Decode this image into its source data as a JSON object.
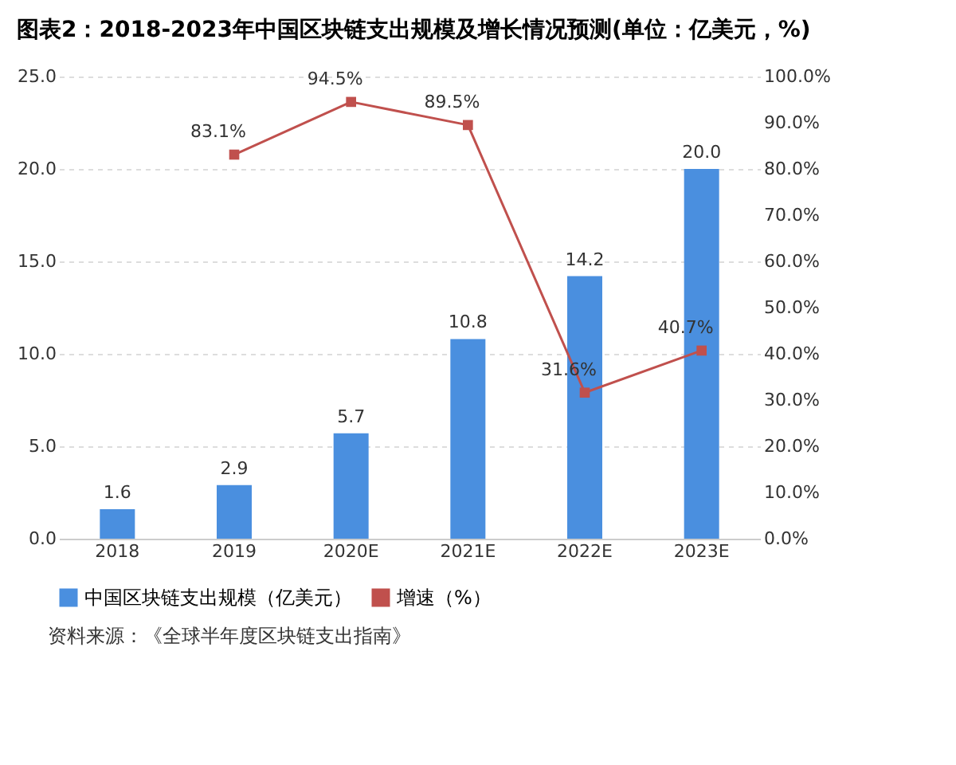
{
  "chart_data": {
    "type": "bar",
    "title": "图表2：2018-2023年中国区块链支出规模及增长情况预测(单位：亿美元，%)",
    "categories": [
      "2018",
      "2019",
      "2020E",
      "2021E",
      "2022E",
      "2023E"
    ],
    "series": [
      {
        "name": "中国区块链支出规模（亿美元）",
        "color": "#4a8fdf",
        "values": [
          1.6,
          2.9,
          5.7,
          10.8,
          14.2,
          20.0
        ],
        "value_labels": [
          "1.6",
          "2.9",
          "5.7",
          "10.8",
          "14.2",
          "20.0"
        ]
      },
      {
        "name": "增速（%）",
        "type": "line",
        "axis": "y2",
        "color": "#c0504d",
        "marker": "square",
        "values": [
          null,
          83.1,
          94.5,
          89.5,
          31.6,
          40.7
        ],
        "value_labels": [
          null,
          "83.1%",
          "94.5%",
          "89.5%",
          "31.6%",
          "40.7%"
        ]
      }
    ],
    "ylim": [
      0,
      25
    ],
    "yticks": [
      {
        "value": 0,
        "label": "0.0"
      },
      {
        "value": 5,
        "label": "5.0"
      },
      {
        "value": 10,
        "label": "10.0"
      },
      {
        "value": 15,
        "label": "15.0"
      },
      {
        "value": 20,
        "label": "20.0"
      },
      {
        "value": 25,
        "label": "25.0"
      }
    ],
    "y2lim": [
      0,
      100
    ],
    "y2ticks": [
      {
        "value": 0,
        "label": "0.0%"
      },
      {
        "value": 10,
        "label": "10.0%"
      },
      {
        "value": 20,
        "label": "20.0%"
      },
      {
        "value": 30,
        "label": "30.0%"
      },
      {
        "value": 40,
        "label": "40.0%"
      },
      {
        "value": 50,
        "label": "50.0%"
      },
      {
        "value": 60,
        "label": "60.0%"
      },
      {
        "value": 70,
        "label": "70.0%"
      },
      {
        "value": 80,
        "label": "80.0%"
      },
      {
        "value": 90,
        "label": "90.0%"
      },
      {
        "value": 100,
        "label": "100.0%"
      }
    ],
    "grid": "y",
    "legend": "bottom",
    "annotations": [
      "资料来源：《全球半年度区块链支出指南》"
    ]
  }
}
